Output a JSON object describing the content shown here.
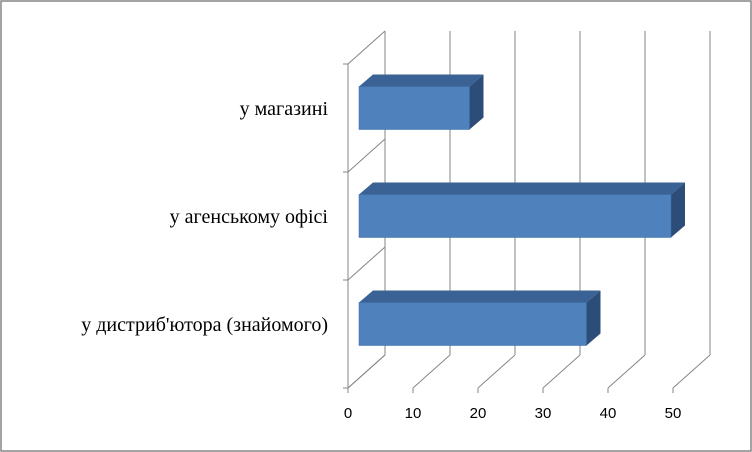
{
  "chart_data": {
    "type": "bar3d-horizontal",
    "categories": [
      "у магазині",
      "у агенському офісі",
      "у дистриб'ютора (знайомого)"
    ],
    "values": [
      17,
      48,
      35
    ],
    "color": "#4f81bd",
    "xlim": [
      0,
      50
    ],
    "xticks": [
      0,
      10,
      20,
      30,
      40,
      50
    ],
    "grid": true
  }
}
